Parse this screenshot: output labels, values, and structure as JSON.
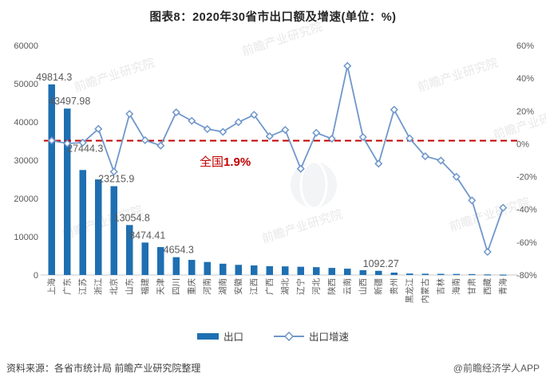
{
  "title": "图表8：2020年30省市出口额及增速(单位：%)",
  "legend": {
    "bar": "出口",
    "line": "出口增速"
  },
  "footer": {
    "source": "资料来源：各省市统计局 前瞻产业研究院整理",
    "brand": "@前瞻经济学人APP"
  },
  "watermark": {
    "text": "前瞻产业研究院"
  },
  "colors": {
    "bar": "#1e6fb2",
    "line": "#6f97cb",
    "reference": "#c00000",
    "axis_text": "#595959",
    "label_text": "#333333",
    "axis_line": "#c9c9c9",
    "watermark": "#8a97a8"
  },
  "chart_data": {
    "type": "bar+line combo",
    "title": "图表8：2020年30省市出口额及增速(单位：%)",
    "categories": [
      "上海",
      "广东",
      "江苏",
      "浙江",
      "北京",
      "山东",
      "福建",
      "天津",
      "四川",
      "重庆",
      "河南",
      "湖南",
      "安徽",
      "江西",
      "广西",
      "湖北",
      "辽宁",
      "河北",
      "陕西",
      "云南",
      "山西",
      "新疆",
      "贵州",
      "黑龙江",
      "内蒙古",
      "吉林",
      "海南",
      "甘肃",
      "西藏",
      "青海"
    ],
    "series": [
      {
        "name": "出口",
        "type": "bar",
        "axis": "left",
        "values": [
          49814.3,
          43497.98,
          27444.3,
          24978,
          23215.9,
          13054.8,
          8474.41,
          7300,
          4654.3,
          3950,
          3400,
          2950,
          2650,
          2500,
          2300,
          2250,
          2150,
          2050,
          1850,
          1650,
          1250,
          1092.27,
          620,
          380,
          330,
          300,
          270,
          240,
          150,
          110
        ]
      },
      {
        "name": "出口增速",
        "type": "line",
        "axis": "right",
        "unit": "%",
        "values": [
          2,
          0.2,
          0.7,
          9.1,
          -17,
          18.2,
          2.2,
          -1.1,
          19.2,
          14,
          9,
          7.3,
          13.2,
          17.7,
          4.6,
          8.5,
          -15.2,
          6.7,
          3.1,
          47.5,
          4.1,
          -12.1,
          20.8,
          3.3,
          -7.6,
          -10.2,
          -20.1,
          -34.5,
          -65.9,
          -39
        ]
      }
    ],
    "bar_labels": {
      "0": "49814.3",
      "1": "43497.98",
      "2": "27444.3",
      "4": "23215.9",
      "5": "13054.8",
      "6": "8474.41",
      "8": "4654.3",
      "21": "1092.27"
    },
    "left_axis": {
      "min": 0,
      "max": 60000,
      "ticks": [
        {
          "v": 60000,
          "label": "60000"
        },
        {
          "v": 50000,
          "label": "50000"
        },
        {
          "v": 40000,
          "label": "40000"
        },
        {
          "v": 30000,
          "label": "30000"
        },
        {
          "v": 20000,
          "label": "20000"
        },
        {
          "v": 10000,
          "label": "10000"
        },
        {
          "v": 0,
          "label": "0"
        }
      ]
    },
    "right_axis": {
      "min": -80,
      "max": 60,
      "ticks": [
        {
          "v": 60,
          "label": "60%"
        },
        {
          "v": 40,
          "label": "40%"
        },
        {
          "v": 20,
          "label": "20%"
        },
        {
          "v": 0,
          "label": "0%"
        },
        {
          "v": -20,
          "label": "-20%"
        },
        {
          "v": -40,
          "label": "-40%"
        },
        {
          "v": -60,
          "label": "-60%"
        },
        {
          "v": -80,
          "label": "-80%"
        }
      ]
    },
    "reference_line": {
      "value": 1.9,
      "label_prefix": "全国",
      "label_value": "1.9%"
    },
    "legend_position": "bottom",
    "grid": false
  }
}
